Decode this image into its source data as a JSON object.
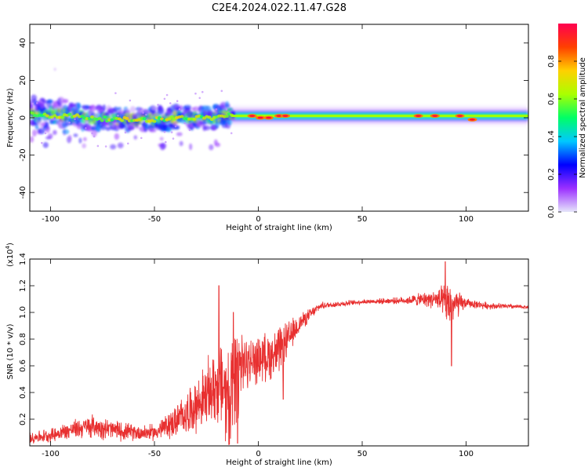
{
  "figure": {
    "title": "C2E4.2024.022.11.47.G28"
  },
  "chart_data": [
    {
      "type": "heatmap",
      "panel": "spectrogram",
      "xlabel": "Height of straight line (km)",
      "ylabel": "Frequency (Hz)",
      "xlim": [
        -110,
        130
      ],
      "ylim": [
        -50,
        50
      ],
      "xticks": [
        -100,
        -50,
        0,
        50,
        100
      ],
      "yticks": [
        -40,
        -20,
        0,
        20,
        40
      ],
      "colorbar": {
        "label": "Normalized spectral amplitude",
        "range": [
          0.0,
          1.0
        ],
        "ticks": [
          "0.0",
          "0.2",
          "0.4",
          "0.6",
          "0.8"
        ],
        "colors": [
          "#e6e6fa",
          "#9b30ff",
          "#0000ff",
          "#00c8ff",
          "#00ff66",
          "#aaff00",
          "#ffd000",
          "#ff4000",
          "#ff0050"
        ]
      },
      "ridge": [
        {
          "x": -110,
          "y": 2
        },
        {
          "x": -100,
          "y": 1
        },
        {
          "x": -90,
          "y": 1
        },
        {
          "x": -80,
          "y": 0
        },
        {
          "x": -70,
          "y": -1
        },
        {
          "x": -60,
          "y": -1
        },
        {
          "x": -50,
          "y": -1
        },
        {
          "x": -40,
          "y": 0
        },
        {
          "x": -30,
          "y": 0
        },
        {
          "x": -20,
          "y": 0
        },
        {
          "x": -13,
          "y": 2
        },
        {
          "x": 0,
          "y": 1
        },
        {
          "x": 25,
          "y": 1
        },
        {
          "x": 50,
          "y": 1
        },
        {
          "x": 75,
          "y": 1
        },
        {
          "x": 100,
          "y": 1
        },
        {
          "x": 130,
          "y": 1
        }
      ],
      "hot_spots": [
        {
          "x": -3,
          "y": 1
        },
        {
          "x": 1,
          "y": 0
        },
        {
          "x": 5,
          "y": 0
        },
        {
          "x": 10,
          "y": 1
        },
        {
          "x": 13,
          "y": 1
        },
        {
          "x": 77,
          "y": 1
        },
        {
          "x": 85,
          "y": 1
        },
        {
          "x": 97,
          "y": 1
        },
        {
          "x": 103,
          "y": -1
        }
      ]
    },
    {
      "type": "line",
      "panel": "snr",
      "title": "",
      "xlabel": "Height of straight line (km)",
      "ylabel": "SNR (10 * v/v)",
      "multiplier_label": "(x10",
      "multiplier_exponent": "4",
      "xlim": [
        -110,
        130
      ],
      "ylim": [
        0.0,
        1.4
      ],
      "xticks": [
        -100,
        -50,
        0,
        50,
        100
      ],
      "yticks": [
        "0.2",
        "0.4",
        "0.6",
        "0.8",
        "1.0",
        "1.2",
        "1.4"
      ],
      "series": [
        {
          "name": "SNR",
          "color": "#e83030",
          "envelope": [
            {
              "x": -110,
              "base": 0.06,
              "amp": 0.05
            },
            {
              "x": -100,
              "base": 0.08,
              "amp": 0.06
            },
            {
              "x": -90,
              "base": 0.12,
              "amp": 0.08
            },
            {
              "x": -80,
              "base": 0.15,
              "amp": 0.1
            },
            {
              "x": -70,
              "base": 0.12,
              "amp": 0.09
            },
            {
              "x": -60,
              "base": 0.1,
              "amp": 0.07
            },
            {
              "x": -50,
              "base": 0.1,
              "amp": 0.07
            },
            {
              "x": -40,
              "base": 0.18,
              "amp": 0.14
            },
            {
              "x": -30,
              "base": 0.3,
              "amp": 0.22
            },
            {
              "x": -20,
              "base": 0.45,
              "amp": 0.35
            },
            {
              "x": -15,
              "base": 0.45,
              "amp": 0.4
            },
            {
              "x": -10,
              "base": 0.6,
              "amp": 0.25
            },
            {
              "x": 0,
              "base": 0.65,
              "amp": 0.2
            },
            {
              "x": 10,
              "base": 0.7,
              "amp": 0.22
            },
            {
              "x": 20,
              "base": 0.92,
              "amp": 0.08
            },
            {
              "x": 30,
              "base": 1.05,
              "amp": 0.03
            },
            {
              "x": 50,
              "base": 1.08,
              "amp": 0.02
            },
            {
              "x": 70,
              "base": 1.09,
              "amp": 0.03
            },
            {
              "x": 85,
              "base": 1.1,
              "amp": 0.08
            },
            {
              "x": 92,
              "base": 1.05,
              "amp": 0.2
            },
            {
              "x": 100,
              "base": 1.07,
              "amp": 0.04
            },
            {
              "x": 110,
              "base": 1.05,
              "amp": 0.03
            },
            {
              "x": 130,
              "base": 1.04,
              "amp": 0.015
            }
          ],
          "features": [
            {
              "x": -19,
              "y": 1.2
            },
            {
              "x": -12,
              "y": 1.0
            },
            {
              "x": -10,
              "y": 0.02
            },
            {
              "x": 12,
              "y": 0.35
            },
            {
              "x": 90,
              "y": 1.38
            },
            {
              "x": 93,
              "y": 0.6
            }
          ]
        }
      ]
    }
  ]
}
